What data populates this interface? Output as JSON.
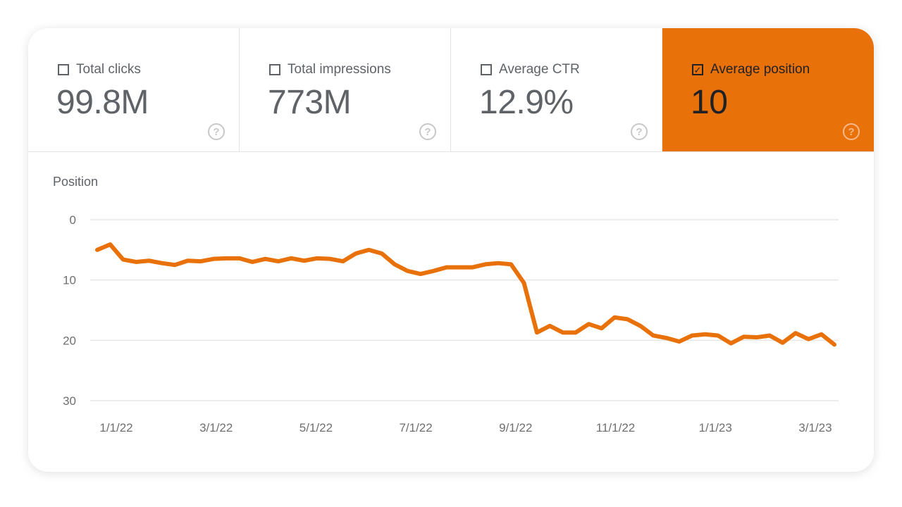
{
  "tiles": [
    {
      "label": "Total clicks",
      "value": "99.8M",
      "checked": false
    },
    {
      "label": "Total impressions",
      "value": "773M",
      "checked": false
    },
    {
      "label": "Average CTR",
      "value": "12.9%",
      "checked": false
    },
    {
      "label": "Average position",
      "value": "10",
      "checked": true
    }
  ],
  "help_glyph": "?",
  "check_glyph": "✓",
  "colors": {
    "accent": "#E8710A"
  },
  "chart_data": {
    "type": "line",
    "title": "",
    "ylabel": "Position",
    "xlabel": "",
    "y_inverted": true,
    "ylim": [
      0,
      30
    ],
    "yticks": [
      "0",
      "10",
      "20",
      "30"
    ],
    "xticks": [
      "1/1/22",
      "3/1/22",
      "5/1/22",
      "7/1/22",
      "9/1/22",
      "11/1/22",
      "1/1/23",
      "3/1/23"
    ],
    "grid": true,
    "series": [
      {
        "color": "#E8710A",
        "values": [
          5.0,
          4.1,
          6.6,
          7.0,
          6.8,
          7.2,
          7.5,
          6.8,
          6.9,
          6.5,
          6.4,
          6.4,
          7.0,
          6.5,
          6.9,
          6.4,
          6.8,
          6.4,
          6.5,
          6.9,
          5.6,
          5.0,
          5.6,
          7.4,
          8.5,
          9.0,
          8.5,
          7.9,
          7.9,
          7.9,
          7.4,
          7.2,
          7.4,
          10.5,
          18.7,
          17.6,
          18.7,
          18.7,
          17.3,
          18.0,
          16.2,
          16.5,
          17.6,
          19.2,
          19.6,
          20.2,
          19.2,
          19.0,
          19.2,
          20.5,
          19.4,
          19.5,
          19.2,
          20.4,
          18.8,
          19.8,
          19.0,
          20.7
        ]
      }
    ]
  }
}
